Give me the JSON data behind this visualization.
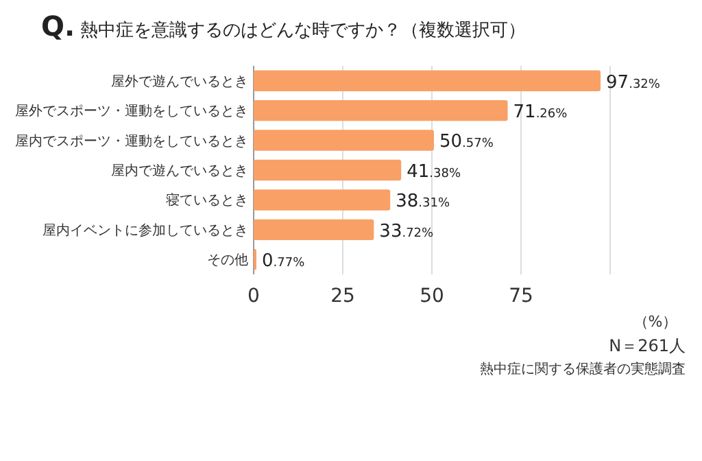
{
  "chart_data": {
    "type": "bar",
    "orientation": "horizontal",
    "title": "Q. 熱中症を意識するのはどんな時ですか？（複数選択可）",
    "categories": [
      "屋外で遊んでいるとき",
      "屋外でスポーツ・運動をしているとき",
      "屋内でスポーツ・運動をしているとき",
      "屋内で遊んでいるとき",
      "寝ているとき",
      "屋内イベントに参加しているとき",
      "その他"
    ],
    "values": [
      97.32,
      71.26,
      50.57,
      41.38,
      38.31,
      33.72,
      0.77
    ],
    "value_labels": [
      "97.32%",
      "71.26%",
      "50.57%",
      "41.38%",
      "38.31%",
      "33.72%",
      "0.77%"
    ],
    "color": "#f9a066",
    "xlim": [
      0,
      100
    ],
    "xticks": [
      0,
      25,
      50,
      75,
      {
        "value": 100,
        "label": null
      }
    ],
    "xlabel": "（%）",
    "grid": "x",
    "annotations": [
      "N＝261人",
      "熱中症に関する保護者の実態調査"
    ]
  }
}
